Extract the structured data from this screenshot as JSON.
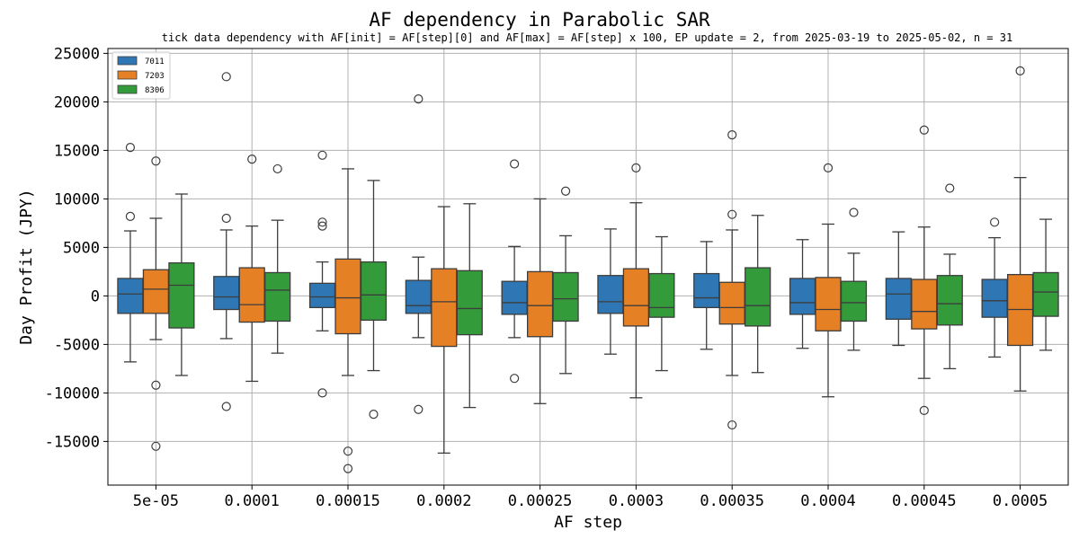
{
  "chart_data": {
    "type": "box",
    "title": "AF dependency in Parabolic SAR",
    "subtitle": "tick data dependency with AF[init] = AF[step][0] and AF[max] = AF[step] x 100, EP update = 2, from 2025-03-19 to 2025-05-02, n = 31",
    "xlabel": "AF step",
    "ylabel": "Day Profit (JPY)",
    "ylim": [
      -19500,
      25500
    ],
    "yticks": [
      -15000,
      -10000,
      -5000,
      0,
      5000,
      10000,
      15000,
      20000,
      25000
    ],
    "grid": true,
    "legend_position": "top-left",
    "categories": [
      "5e-05",
      "0.0001",
      "0.00015",
      "0.0002",
      "0.00025",
      "0.0003",
      "0.00035",
      "0.0004",
      "0.00045",
      "0.0005"
    ],
    "series": [
      {
        "name": "7011",
        "color": "#2f77b4",
        "boxes": [
          {
            "whislo": -6800,
            "q1": -1800,
            "med": 200,
            "q3": 1800,
            "whishi": 6700,
            "fliers": [
              15300,
              8200
            ]
          },
          {
            "whislo": -4400,
            "q1": -1400,
            "med": -100,
            "q3": 2000,
            "whishi": 6800,
            "fliers": [
              22600,
              8000,
              -11400
            ]
          },
          {
            "whislo": -3600,
            "q1": -1200,
            "med": -100,
            "q3": 1300,
            "whishi": 3500,
            "fliers": [
              14500,
              7600,
              7200,
              -10000
            ]
          },
          {
            "whislo": -4300,
            "q1": -1800,
            "med": -1000,
            "q3": 1600,
            "whishi": 4000,
            "fliers": [
              20300,
              -11700
            ]
          },
          {
            "whislo": -4300,
            "q1": -1900,
            "med": -700,
            "q3": 1500,
            "whishi": 5100,
            "fliers": [
              13600,
              -8500
            ]
          },
          {
            "whislo": -6000,
            "q1": -1800,
            "med": -600,
            "q3": 2100,
            "whishi": 6900,
            "fliers": []
          },
          {
            "whislo": -5500,
            "q1": -1200,
            "med": -200,
            "q3": 2300,
            "whishi": 5600,
            "fliers": []
          },
          {
            "whislo": -5400,
            "q1": -1900,
            "med": -700,
            "q3": 1800,
            "whishi": 5800,
            "fliers": []
          },
          {
            "whislo": -5100,
            "q1": -2400,
            "med": 200,
            "q3": 1800,
            "whishi": 6600,
            "fliers": []
          },
          {
            "whislo": -6300,
            "q1": -2200,
            "med": -500,
            "q3": 1700,
            "whishi": 6000,
            "fliers": [
              7600
            ]
          }
        ]
      },
      {
        "name": "7203",
        "color": "#e68024",
        "boxes": [
          {
            "whislo": -4500,
            "q1": -1800,
            "med": 700,
            "q3": 2700,
            "whishi": 8000,
            "fliers": [
              13900,
              -9200,
              -15500
            ]
          },
          {
            "whislo": -8800,
            "q1": -2700,
            "med": -900,
            "q3": 2900,
            "whishi": 7200,
            "fliers": [
              14100
            ]
          },
          {
            "whislo": -8200,
            "q1": -3900,
            "med": -200,
            "q3": 3800,
            "whishi": 13100,
            "fliers": [
              -16000,
              -17800
            ]
          },
          {
            "whislo": -16200,
            "q1": -5200,
            "med": -600,
            "q3": 2800,
            "whishi": 9200,
            "fliers": []
          },
          {
            "whislo": -11100,
            "q1": -4200,
            "med": -1000,
            "q3": 2500,
            "whishi": 10000,
            "fliers": []
          },
          {
            "whislo": -10500,
            "q1": -3100,
            "med": -1000,
            "q3": 2800,
            "whishi": 9600,
            "fliers": [
              13200
            ]
          },
          {
            "whislo": -8200,
            "q1": -2900,
            "med": -1200,
            "q3": 1400,
            "whishi": 6800,
            "fliers": [
              16600,
              8400,
              -13300
            ]
          },
          {
            "whislo": -10400,
            "q1": -3600,
            "med": -1400,
            "q3": 1900,
            "whishi": 7400,
            "fliers": [
              13200
            ]
          },
          {
            "whislo": -8500,
            "q1": -3400,
            "med": -1600,
            "q3": 1700,
            "whishi": 7100,
            "fliers": [
              17100,
              -11800
            ]
          },
          {
            "whislo": -9800,
            "q1": -5100,
            "med": -1400,
            "q3": 2200,
            "whishi": 12200,
            "fliers": [
              23200
            ]
          }
        ]
      },
      {
        "name": "8306",
        "color": "#349b3a",
        "boxes": [
          {
            "whislo": -8200,
            "q1": -3300,
            "med": 1100,
            "q3": 3400,
            "whishi": 10500,
            "fliers": []
          },
          {
            "whislo": -5900,
            "q1": -2600,
            "med": 600,
            "q3": 2400,
            "whishi": 7800,
            "fliers": [
              13100
            ]
          },
          {
            "whislo": -7700,
            "q1": -2500,
            "med": 100,
            "q3": 3500,
            "whishi": 11900,
            "fliers": [
              -12200
            ]
          },
          {
            "whislo": -11500,
            "q1": -4000,
            "med": -1300,
            "q3": 2600,
            "whishi": 9500,
            "fliers": []
          },
          {
            "whislo": -8000,
            "q1": -2600,
            "med": -300,
            "q3": 2400,
            "whishi": 6200,
            "fliers": [
              10800
            ]
          },
          {
            "whislo": -7700,
            "q1": -2200,
            "med": -1200,
            "q3": 2300,
            "whishi": 6100,
            "fliers": []
          },
          {
            "whislo": -7900,
            "q1": -3100,
            "med": -1000,
            "q3": 2900,
            "whishi": 8300,
            "fliers": []
          },
          {
            "whislo": -5600,
            "q1": -2600,
            "med": -700,
            "q3": 1500,
            "whishi": 4400,
            "fliers": [
              8600
            ]
          },
          {
            "whislo": -7500,
            "q1": -3000,
            "med": -800,
            "q3": 2100,
            "whishi": 4300,
            "fliers": [
              11100
            ]
          },
          {
            "whislo": -5600,
            "q1": -2100,
            "med": 400,
            "q3": 2400,
            "whishi": 7900,
            "fliers": []
          }
        ]
      }
    ]
  }
}
